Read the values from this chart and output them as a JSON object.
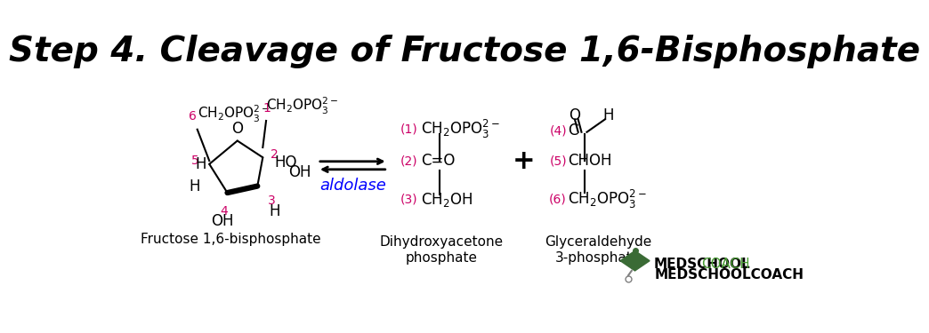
{
  "title": "Step 4. Cleavage of Fructose 1,6-Bisphosphate",
  "title_font": "DejaVu Sans",
  "title_size": 28,
  "bg_color": "#ffffff",
  "black": "#000000",
  "magenta": "#cc0066",
  "blue": "#0000ff",
  "green_dark": "#2d6a2d",
  "green_logo": "#4a7c3f",
  "label_fructose": "Fructose 1,6-bisphosphate",
  "label_dhap": "Dihydroxyacetone\nphosphate",
  "label_gap": "Glyceraldehyde\n3-phosphate",
  "label_aldolase": "aldolase",
  "medschool_bold": "MEDSCHOOL",
  "medschool_light": "COACH"
}
